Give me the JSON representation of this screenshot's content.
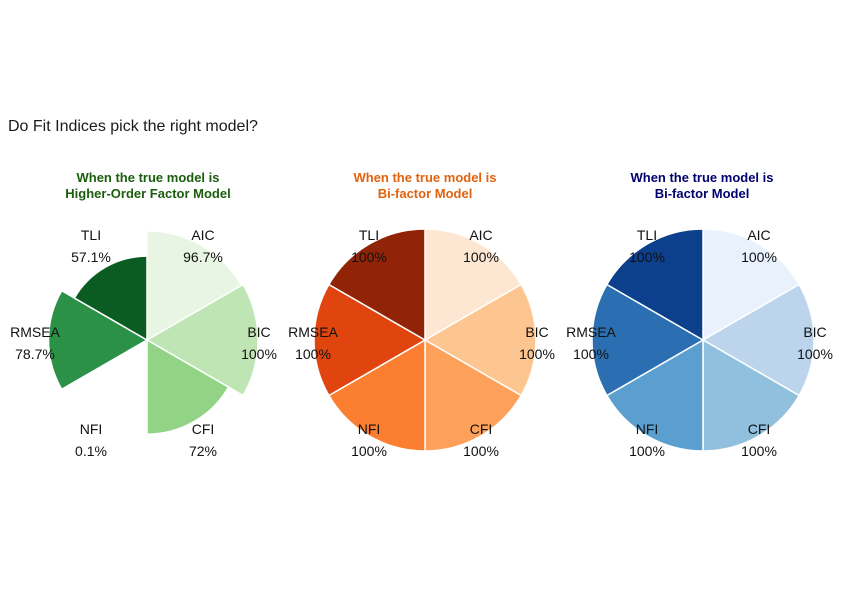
{
  "title": "Do Fit Indices pick the right model?",
  "chart_data": [
    {
      "type": "pie",
      "title_line1": "When the true model is",
      "title_line2": "Higher-Order Factor Model",
      "title_color": "#1a5e0d",
      "categories": [
        "AIC",
        "BIC",
        "CFI",
        "NFI",
        "RMSEA",
        "TLI"
      ],
      "values": [
        96.7,
        100,
        72,
        0.1,
        78.7,
        57.1
      ],
      "value_labels": [
        "96.7%",
        "100%",
        "72%",
        "0.1%",
        "78.7%",
        "57.1%"
      ],
      "colors": [
        "#e8f5e2",
        "#c0e5b5",
        "#93d385",
        "#5cb760",
        "#2a9147",
        "#0b5c22"
      ],
      "radial_scale": true,
      "ylim": [
        0,
        100
      ]
    },
    {
      "type": "pie",
      "title_line1": "When the true model is",
      "title_line2": "Bi-factor Model",
      "title_color": "#e2620e",
      "categories": [
        "AIC",
        "BIC",
        "CFI",
        "NFI",
        "RMSEA",
        "TLI"
      ],
      "values": [
        100,
        100,
        100,
        100,
        100,
        100
      ],
      "value_labels": [
        "100%",
        "100%",
        "100%",
        "100%",
        "100%",
        "100%"
      ],
      "colors": [
        "#fde7d3",
        "#fdc590",
        "#fda05a",
        "#fc7e30",
        "#e1450f",
        "#912406"
      ],
      "radial_scale": true,
      "ylim": [
        0,
        100
      ]
    },
    {
      "type": "pie",
      "title_line1": "When the true model is",
      "title_line2": "Bi-factor Model",
      "title_color": "#00006e",
      "categories": [
        "AIC",
        "BIC",
        "CFI",
        "NFI",
        "RMSEA",
        "TLI"
      ],
      "values": [
        100,
        100,
        100,
        100,
        100,
        100
      ],
      "value_labels": [
        "100%",
        "100%",
        "100%",
        "100%",
        "100%",
        "100%"
      ],
      "colors": [
        "#e9f1fc",
        "#bcd5ec",
        "#90c0dd",
        "#5a9fcf",
        "#2b6fb2",
        "#0c3f8c"
      ],
      "radial_scale": true,
      "ylim": [
        0,
        100
      ]
    }
  ]
}
